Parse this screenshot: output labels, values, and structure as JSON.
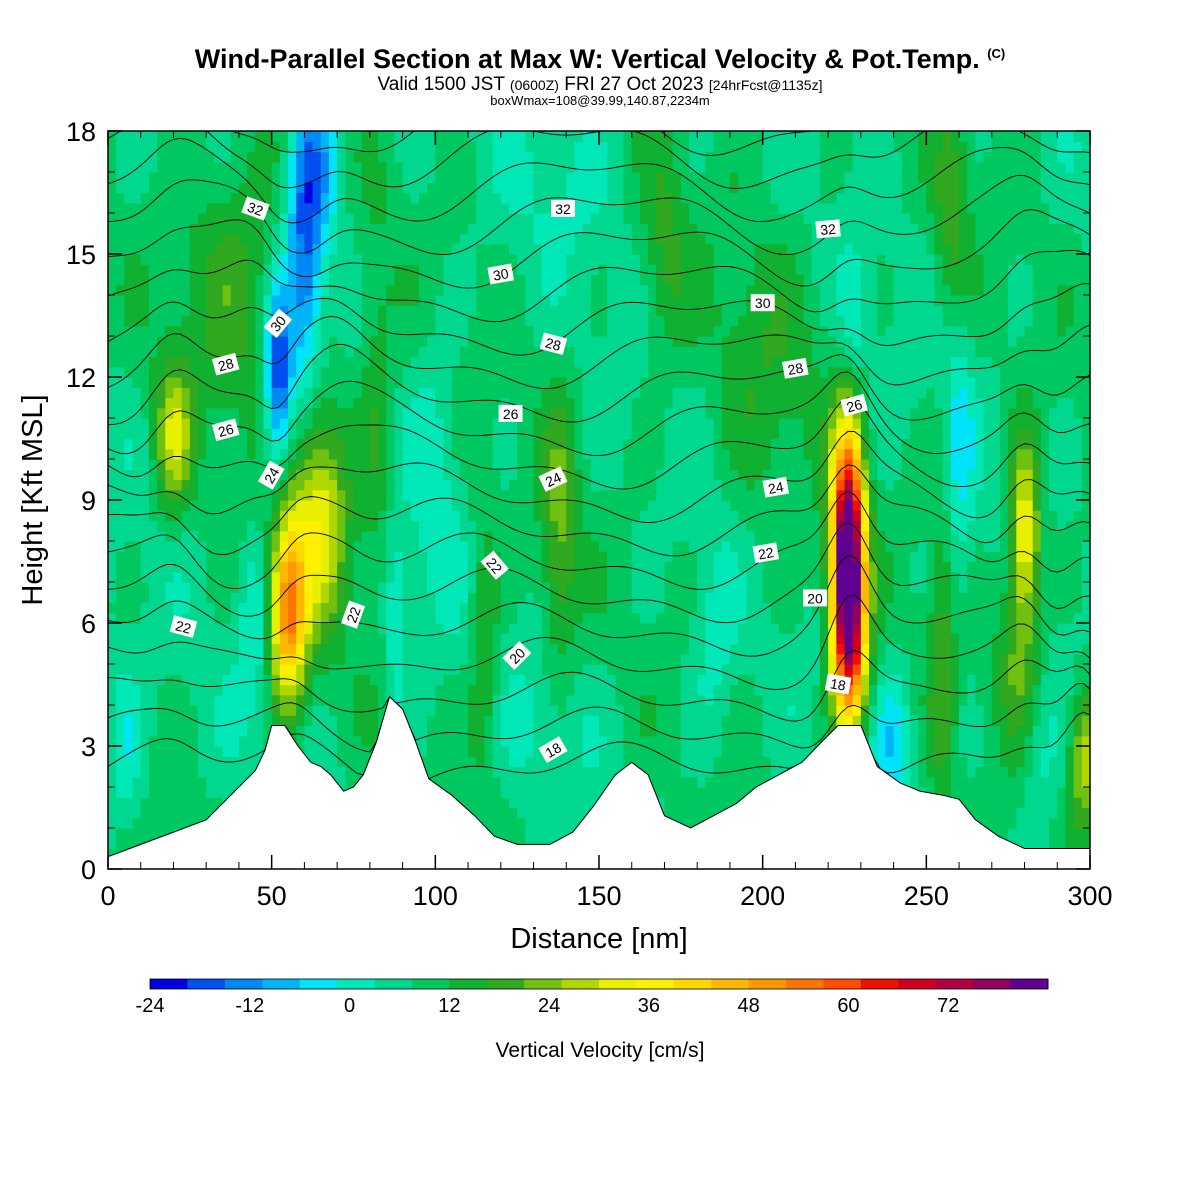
{
  "header": {
    "title": "Wind-Parallel Section at Max W: Vertical Velocity & Pot.Temp.",
    "title_tag": "(C)",
    "valid_prefix": "Valid 1500 JST",
    "valid_zulu": "(0600Z)",
    "valid_date": "FRI 27 Oct 2023",
    "forecast": "[24hrFcst@1135z]",
    "box_info": "boxWmax=108@39.99,140.87,2234m"
  },
  "chart_data": {
    "type": "heatmap",
    "xlabel": "Distance [nm]",
    "ylabel": "Height [Kft MSL]",
    "xlim": [
      0,
      300
    ],
    "ylim": [
      0,
      18
    ],
    "xticks": [
      0,
      50,
      100,
      150,
      200,
      250,
      300
    ],
    "yticks": [
      0,
      3,
      6,
      9,
      12,
      15,
      18
    ],
    "colorbar": {
      "title": "Vertical Velocity [cm/s]",
      "min": -24,
      "max": 84,
      "step": 4,
      "tick_values": [
        -24,
        -12,
        0,
        12,
        24,
        36,
        48,
        60,
        72
      ],
      "tick_labels": [
        "-24",
        "-12",
        "0",
        "12",
        "24",
        "36",
        "48",
        "60",
        "72"
      ],
      "colors": [
        "#0000e0",
        "#0050f0",
        "#0088f5",
        "#00b4f8",
        "#00e4f8",
        "#00e8b8",
        "#00d890",
        "#00c860",
        "#10b030",
        "#30a820",
        "#70c010",
        "#b0d800",
        "#e8f000",
        "#fff000",
        "#ffd800",
        "#ffb800",
        "#ff9800",
        "#ff7400",
        "#ff4c00",
        "#f01000",
        "#d00020",
        "#b00040",
        "#900060",
        "#600090"
      ]
    },
    "terrain_kft": [
      [
        0,
        0.3
      ],
      [
        10,
        0.6
      ],
      [
        20,
        0.9
      ],
      [
        30,
        1.2
      ],
      [
        35,
        1.6
      ],
      [
        40,
        2.0
      ],
      [
        45,
        2.4
      ],
      [
        48,
        2.9
      ],
      [
        50,
        3.5
      ],
      [
        54,
        3.5
      ],
      [
        58,
        3.0
      ],
      [
        62,
        2.6
      ],
      [
        65,
        2.5
      ],
      [
        68,
        2.3
      ],
      [
        70,
        2.1
      ],
      [
        72,
        1.9
      ],
      [
        75,
        2.0
      ],
      [
        78,
        2.3
      ],
      [
        82,
        3.1
      ],
      [
        86,
        4.2
      ],
      [
        90,
        3.9
      ],
      [
        94,
        3.1
      ],
      [
        98,
        2.2
      ],
      [
        105,
        1.8
      ],
      [
        112,
        1.3
      ],
      [
        118,
        0.8
      ],
      [
        125,
        0.6
      ],
      [
        135,
        0.6
      ],
      [
        142,
        0.9
      ],
      [
        148,
        1.5
      ],
      [
        155,
        2.3
      ],
      [
        160,
        2.6
      ],
      [
        165,
        2.3
      ],
      [
        170,
        1.3
      ],
      [
        178,
        1.0
      ],
      [
        185,
        1.3
      ],
      [
        192,
        1.6
      ],
      [
        198,
        2.0
      ],
      [
        205,
        2.3
      ],
      [
        212,
        2.6
      ],
      [
        218,
        3.1
      ],
      [
        223,
        3.5
      ],
      [
        230,
        3.5
      ],
      [
        235,
        2.5
      ],
      [
        242,
        2.1
      ],
      [
        248,
        1.9
      ],
      [
        255,
        1.8
      ],
      [
        260,
        1.7
      ],
      [
        265,
        1.2
      ],
      [
        272,
        0.8
      ],
      [
        280,
        0.5
      ],
      [
        290,
        0.5
      ],
      [
        300,
        0.5
      ]
    ],
    "velocity_features": [
      {
        "x": 55,
        "y": 6.3,
        "sx": 4,
        "sy": 1.6,
        "w": 40
      },
      {
        "x": 65,
        "y": 8.8,
        "sx": 6,
        "sy": 2.0,
        "w": 22
      },
      {
        "x": 20,
        "y": 10.5,
        "sx": 4,
        "sy": 1.3,
        "w": 18
      },
      {
        "x": 40,
        "y": 14.5,
        "sx": 12,
        "sy": 2.5,
        "w": 10
      },
      {
        "x": 226,
        "y": 7.5,
        "sx": 3.5,
        "sy": 2.1,
        "w": 80
      },
      {
        "x": 227,
        "y": 5.0,
        "sx": 4,
        "sy": 1.4,
        "w": 20
      },
      {
        "x": 280,
        "y": 8.1,
        "sx": 3.5,
        "sy": 1.6,
        "w": 26
      },
      {
        "x": 278,
        "y": 5.0,
        "sx": 5,
        "sy": 1.3,
        "w": 10
      },
      {
        "x": 138,
        "y": 8.0,
        "sx": 4,
        "sy": 2.5,
        "w": 12
      },
      {
        "x": 115,
        "y": 5.5,
        "sx": 3,
        "sy": 2.2,
        "w": 10
      },
      {
        "x": 255,
        "y": 5.0,
        "sx": 3,
        "sy": 3.0,
        "w": 10
      },
      {
        "x": 258,
        "y": 16.0,
        "sx": 4,
        "sy": 2.0,
        "w": 10
      },
      {
        "x": 170,
        "y": 15.0,
        "sx": 5,
        "sy": 2.0,
        "w": 8
      },
      {
        "x": 298,
        "y": 2.8,
        "sx": 3,
        "sy": 1.2,
        "w": 20
      },
      {
        "x": 82,
        "y": 11.0,
        "sx": 4,
        "sy": 3.0,
        "w": 8
      },
      {
        "x": 200,
        "y": 12.0,
        "sx": 12,
        "sy": 3.0,
        "w": 6
      },
      {
        "x": 100,
        "y": 9.5,
        "sx": 5,
        "sy": 2.5,
        "w": -6
      },
      {
        "x": 52,
        "y": 12.0,
        "sx": 3,
        "sy": 1.6,
        "w": -26
      },
      {
        "x": 60,
        "y": 15.0,
        "sx": 4,
        "sy": 2.5,
        "w": -20
      },
      {
        "x": 65,
        "y": 17.2,
        "sx": 5,
        "sy": 1.5,
        "w": -12
      },
      {
        "x": 88,
        "y": 6.0,
        "sx": 2.5,
        "sy": 1.5,
        "w": -10
      },
      {
        "x": 45,
        "y": 6.0,
        "sx": 4,
        "sy": 1.6,
        "w": -8
      },
      {
        "x": 5,
        "y": 3.0,
        "sx": 4,
        "sy": 1.5,
        "w": -8
      },
      {
        "x": 260,
        "y": 10.0,
        "sx": 3,
        "sy": 3.0,
        "w": -8
      },
      {
        "x": 240,
        "y": 3.2,
        "sx": 4,
        "sy": 1.2,
        "w": -10
      },
      {
        "x": 285,
        "y": 2.5,
        "sx": 4,
        "sy": 1.5,
        "w": -6
      },
      {
        "x": 228,
        "y": 13.5,
        "sx": 3,
        "sy": 1.0,
        "w": -8
      },
      {
        "x": 135,
        "y": 3.5,
        "sx": 8,
        "sy": 1.5,
        "w": -4
      },
      {
        "x": 185,
        "y": 5.5,
        "sx": 5,
        "sy": 2.0,
        "w": -6
      },
      {
        "x": 140,
        "y": 17.0,
        "sx": 12,
        "sy": 1.5,
        "w": -4
      }
    ],
    "theta_contour_labels": [
      {
        "x": 45,
        "y": 16.1,
        "text": "32",
        "angle": 20
      },
      {
        "x": 139,
        "y": 16.1,
        "text": "32",
        "angle": 0
      },
      {
        "x": 220,
        "y": 15.6,
        "text": "32",
        "angle": -5
      },
      {
        "x": 120,
        "y": 14.5,
        "text": "30",
        "angle": -10
      },
      {
        "x": 52,
        "y": 13.3,
        "text": "30",
        "angle": -50
      },
      {
        "x": 200,
        "y": 13.8,
        "text": "30",
        "angle": 0
      },
      {
        "x": 36,
        "y": 12.3,
        "text": "28",
        "angle": -15
      },
      {
        "x": 136,
        "y": 12.8,
        "text": "28",
        "angle": 15
      },
      {
        "x": 210,
        "y": 12.2,
        "text": "28",
        "angle": -10
      },
      {
        "x": 36,
        "y": 10.7,
        "text": "26",
        "angle": -15
      },
      {
        "x": 123,
        "y": 11.1,
        "text": "26",
        "angle": 0
      },
      {
        "x": 228,
        "y": 11.3,
        "text": "26",
        "angle": -15
      },
      {
        "x": 50,
        "y": 9.6,
        "text": "24",
        "angle": -60
      },
      {
        "x": 136,
        "y": 9.5,
        "text": "24",
        "angle": -25
      },
      {
        "x": 204,
        "y": 9.3,
        "text": "24",
        "angle": -10
      },
      {
        "x": 118,
        "y": 7.4,
        "text": "22",
        "angle": 50
      },
      {
        "x": 201,
        "y": 7.7,
        "text": "22",
        "angle": -10
      },
      {
        "x": 75,
        "y": 6.2,
        "text": "22",
        "angle": -70
      },
      {
        "x": 23,
        "y": 5.9,
        "text": "22",
        "angle": 15
      },
      {
        "x": 216,
        "y": 6.6,
        "text": "20",
        "angle": 0
      },
      {
        "x": 125,
        "y": 5.2,
        "text": "20",
        "angle": -45
      },
      {
        "x": 223,
        "y": 4.5,
        "text": "18",
        "angle": 10
      },
      {
        "x": 136,
        "y": 2.9,
        "text": "18",
        "angle": -30
      }
    ]
  }
}
